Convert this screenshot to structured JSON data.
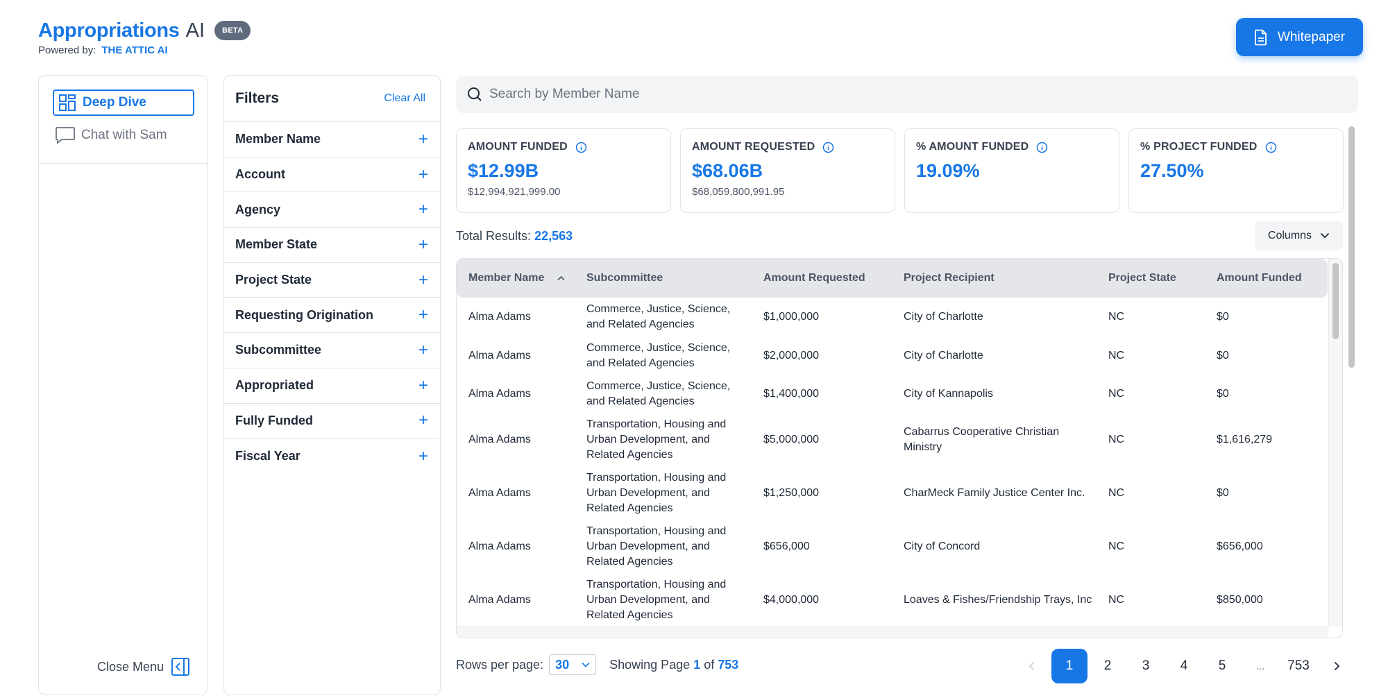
{
  "header": {
    "brand_name": "Appropriations",
    "brand_suffix": "AI",
    "badge": "BETA",
    "powered_label": "Powered by:",
    "powered_org": "THE ATTIC AI",
    "whitepaper_label": "Whitepaper"
  },
  "menu": {
    "items": [
      {
        "label": "Deep Dive",
        "icon": "dashboard-icon",
        "active": true
      },
      {
        "label": "Chat with Sam",
        "icon": "chat-bubble-icon",
        "active": false
      }
    ],
    "close_label": "Close Menu"
  },
  "filters": {
    "title": "Filters",
    "clear_all": "Clear All",
    "items": [
      "Member Name",
      "Account",
      "Agency",
      "Member State",
      "Project State",
      "Requesting Origination",
      "Subcommittee",
      "Appropriated",
      "Fully Funded",
      "Fiscal Year"
    ]
  },
  "search": {
    "placeholder": "Search by Member Name"
  },
  "stats": [
    {
      "label": "AMOUNT FUNDED",
      "value": "$12.99B",
      "sub": "$12,994,921,999.00"
    },
    {
      "label": "AMOUNT REQUESTED",
      "value": "$68.06B",
      "sub": "$68,059,800,991.95"
    },
    {
      "label": "% AMOUNT FUNDED",
      "value": "19.09%",
      "sub": ""
    },
    {
      "label": "% PROJECT FUNDED",
      "value": "27.50%",
      "sub": ""
    }
  ],
  "results": {
    "label": "Total Results:",
    "count": "22,563"
  },
  "columns_button": "Columns",
  "table": {
    "headers": [
      "Member Name",
      "Subcommittee",
      "Amount Requested",
      "Project Recipient",
      "Project State",
      "Amount Funded"
    ],
    "rows": [
      [
        "Alma Adams",
        "Commerce, Justice, Science, and Related Agencies",
        "$1,000,000",
        "City of Charlotte",
        "NC",
        "$0"
      ],
      [
        "Alma Adams",
        "Commerce, Justice, Science, and Related Agencies",
        "$2,000,000",
        "City of Charlotte",
        "NC",
        "$0"
      ],
      [
        "Alma Adams",
        "Commerce, Justice, Science, and Related Agencies",
        "$1,400,000",
        "City of Kannapolis",
        "NC",
        "$0"
      ],
      [
        "Alma Adams",
        "Transportation, Housing and Urban Development, and Related Agencies",
        "$5,000,000",
        "Cabarrus Cooperative Christian Ministry",
        "NC",
        "$1,616,279"
      ],
      [
        "Alma Adams",
        "Transportation, Housing and Urban Development, and Related Agencies",
        "$1,250,000",
        "CharMeck Family Justice Center Inc.",
        "NC",
        "$0"
      ],
      [
        "Alma Adams",
        "Transportation, Housing and Urban Development, and Related Agencies",
        "$656,000",
        "City of Concord",
        "NC",
        "$656,000"
      ],
      [
        "Alma Adams",
        "Transportation, Housing and Urban Development, and Related Agencies",
        "$4,000,000",
        "Loaves & Fishes/Friendship Trays, Inc",
        "NC",
        "$850,000"
      ]
    ]
  },
  "footer": {
    "rows_label": "Rows per page:",
    "rows_value": "30",
    "showing_prefix": "Showing Page",
    "current_page": "1",
    "of_label": "of",
    "total_pages": "753",
    "pages": [
      "1",
      "2",
      "3",
      "4",
      "5",
      "...",
      "753"
    ]
  },
  "colors": {
    "accent": "#1877e6",
    "badge": "#5f6b7d",
    "header_row": "#e4e6ea"
  }
}
